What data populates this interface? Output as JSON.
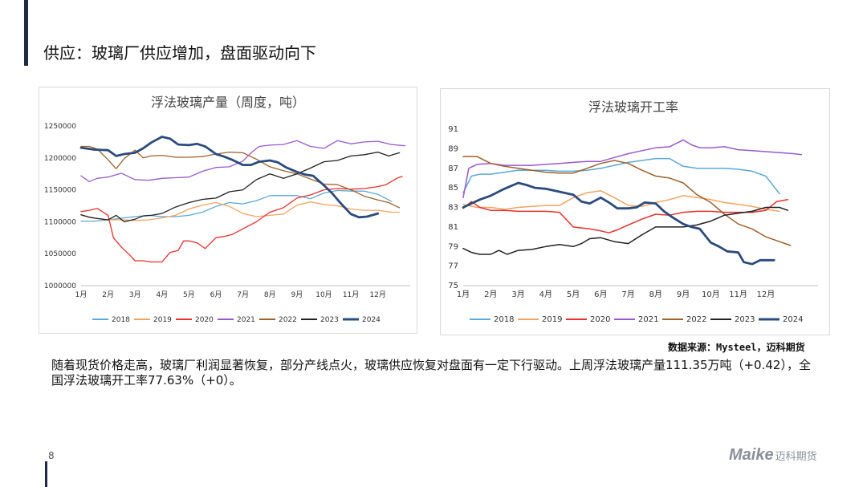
{
  "slide": {
    "title": "供应：玻璃厂供应增加，盘面驱动向下",
    "page_number": "8",
    "source": "数据来源：Mysteel，迈科期货",
    "description": "随着现货价格走高，玻璃厂利润显著恢复，部分产线点火，玻璃供应恢复对盘面有一定下行驱动。上周浮法玻璃产量111.35万吨（+0.42），全国浮法玻璃开工率77.63%（+0）。",
    "logo_brand": "Maike",
    "logo_text": "迈科期货",
    "colors": {
      "accent": "#1f2a44",
      "logo": "#8a8f99"
    }
  },
  "chart_data": [
    {
      "type": "line",
      "title": "浮法玻璃产量（周度，吨）",
      "xlabel": "",
      "ylabel": "",
      "ylim": [
        1000000,
        1250000
      ],
      "yticks": [
        1000000,
        1050000,
        1100000,
        1150000,
        1200000,
        1250000
      ],
      "xticks": [
        "1月",
        "2月",
        "3月",
        "4月",
        "5月",
        "6月",
        "7月",
        "8月",
        "9月",
        "10月",
        "11月",
        "12月"
      ],
      "xrange": [
        1,
        13.2
      ],
      "legend": "bottom",
      "series": [
        {
          "name": "2018",
          "color": "#5aa9d6",
          "width": 1.3,
          "x": [
            1,
            1.5,
            2,
            3,
            3.5,
            4,
            4.5,
            5,
            5.5,
            6,
            6.5,
            7,
            7.5,
            8,
            8.5,
            9,
            9.5,
            10,
            10.5,
            11,
            11.5,
            12,
            12.5
          ],
          "y": [
            1101000,
            1101000,
            1103000,
            1108000,
            1110000,
            1108000,
            1108000,
            1110000,
            1115000,
            1124000,
            1130000,
            1128000,
            1133000,
            1141000,
            1141000,
            1141000,
            1136000,
            1145000,
            1149000,
            1148000,
            1148000,
            1143000,
            1132000
          ]
        },
        {
          "name": "2019",
          "color": "#f4a460",
          "width": 1.3,
          "x": [
            1,
            1.5,
            2,
            2.5,
            3,
            3.5,
            4,
            4.5,
            5,
            5.5,
            6,
            6.5,
            7,
            7.5,
            8,
            8.5,
            9,
            9.5,
            10,
            10.5,
            11,
            11.5,
            12,
            12.5,
            12.8
          ],
          "y": [
            1110000,
            1106000,
            1103000,
            1103000,
            1102000,
            1103000,
            1106000,
            1110000,
            1120000,
            1126000,
            1130000,
            1124000,
            1113000,
            1108000,
            1110000,
            1112000,
            1126000,
            1131000,
            1127000,
            1125000,
            1120000,
            1118000,
            1118000,
            1115000,
            1115000
          ]
        },
        {
          "name": "2020",
          "color": "#e8302c",
          "width": 1.3,
          "x": [
            1,
            1.3,
            1.6,
            2,
            2.2,
            2.5,
            2.8,
            3,
            3.3,
            3.6,
            4,
            4.3,
            4.6,
            4.8,
            5,
            5.3,
            5.6,
            6,
            6.3,
            6.6,
            7,
            7.5,
            8,
            8.5,
            9,
            9.5,
            10,
            10.5,
            11,
            11.5,
            12,
            12.3,
            12.7,
            12.9
          ],
          "y": [
            1116000,
            1118000,
            1121000,
            1110000,
            1075000,
            1060000,
            1048000,
            1039000,
            1039000,
            1037000,
            1037000,
            1052000,
            1055000,
            1070000,
            1070000,
            1067000,
            1058000,
            1075000,
            1077000,
            1080000,
            1089000,
            1100000,
            1115000,
            1122000,
            1137000,
            1142000,
            1150000,
            1152000,
            1151000,
            1152000,
            1155000,
            1158000,
            1168000,
            1171000
          ]
        },
        {
          "name": "2021",
          "color": "#9b59d0",
          "width": 1.3,
          "x": [
            1,
            1.3,
            1.6,
            2,
            2.5,
            3,
            3.5,
            4,
            4.5,
            5,
            5.5,
            6,
            6.5,
            7,
            7.3,
            7.6,
            8,
            8.5,
            9,
            9.5,
            10,
            10.5,
            11,
            11.5,
            12,
            12.5,
            13
          ],
          "y": [
            1172000,
            1163000,
            1168000,
            1170000,
            1176000,
            1166000,
            1165000,
            1168000,
            1169000,
            1170000,
            1179000,
            1185000,
            1186000,
            1195000,
            1208000,
            1218000,
            1220000,
            1221000,
            1227000,
            1218000,
            1215000,
            1227000,
            1222000,
            1225000,
            1226000,
            1221000,
            1219000
          ]
        },
        {
          "name": "2022",
          "color": "#a0612b",
          "width": 1.3,
          "x": [
            1,
            1.3,
            1.6,
            2,
            2.3,
            2.6,
            3,
            3.3,
            3.6,
            4,
            4.5,
            5,
            5.5,
            6,
            6.5,
            7,
            7.5,
            8,
            8.5,
            9,
            9.5,
            10,
            10.5,
            11,
            11.5,
            12,
            12.4,
            12.8
          ],
          "y": [
            1218000,
            1218000,
            1214000,
            1197000,
            1183000,
            1199000,
            1212000,
            1200000,
            1203000,
            1204000,
            1201000,
            1201000,
            1202000,
            1206000,
            1209000,
            1208000,
            1198000,
            1186000,
            1180000,
            1175000,
            1167000,
            1159000,
            1158000,
            1150000,
            1140000,
            1134000,
            1130000,
            1122000
          ]
        },
        {
          "name": "2023",
          "color": "#222222",
          "width": 1.3,
          "x": [
            1,
            1.3,
            1.6,
            2,
            2.3,
            2.6,
            3,
            3.3,
            3.6,
            4,
            4.5,
            5,
            5.5,
            6,
            6.5,
            7,
            7.5,
            8,
            8.5,
            9,
            9.5,
            10,
            10.5,
            11,
            11.5,
            12,
            12.4,
            12.8
          ],
          "y": [
            1111000,
            1107000,
            1105000,
            1103000,
            1110000,
            1100000,
            1104000,
            1109000,
            1110000,
            1113000,
            1123000,
            1130000,
            1135000,
            1137000,
            1147000,
            1150000,
            1166000,
            1175000,
            1168000,
            1175000,
            1184000,
            1194000,
            1196000,
            1203000,
            1205000,
            1209000,
            1203000,
            1208000
          ]
        },
        {
          "name": "2024",
          "color": "#2b4b7e",
          "width": 2.8,
          "x": [
            1,
            1.5,
            2,
            2.3,
            2.6,
            3,
            3.3,
            3.6,
            4,
            4.3,
            4.6,
            5,
            5.3,
            5.6,
            6,
            6.3,
            6.6,
            7,
            7.3,
            7.6,
            8,
            8.3,
            8.6,
            9,
            9.3,
            9.6,
            10,
            10.3,
            10.6,
            11,
            11.3,
            11.6,
            12
          ],
          "y": [
            1216000,
            1213000,
            1212000,
            1203000,
            1206000,
            1208000,
            1215000,
            1224000,
            1233000,
            1230000,
            1221000,
            1220000,
            1222000,
            1218000,
            1206000,
            1202000,
            1197000,
            1189000,
            1189000,
            1194000,
            1196000,
            1193000,
            1185000,
            1178000,
            1174000,
            1172000,
            1157000,
            1145000,
            1130000,
            1112000,
            1107000,
            1108000,
            1113000
          ]
        }
      ]
    },
    {
      "type": "line",
      "title": "浮法玻璃开工率",
      "xlabel": "",
      "ylabel": "",
      "ylim": [
        75,
        91
      ],
      "yticks": [
        75,
        77,
        79,
        81,
        83,
        85,
        87,
        89,
        91
      ],
      "xticks": [
        "1月",
        "2月",
        "3月",
        "4月",
        "5月",
        "6月",
        "7月",
        "8月",
        "9月",
        "10月",
        "11月",
        "12月"
      ],
      "xrange": [
        1,
        13.9
      ],
      "legend": "bottom",
      "series": [
        {
          "name": "2018",
          "color": "#5aa9d6",
          "width": 1.5,
          "x": [
            1,
            1.3,
            1.6,
            2,
            2.5,
            3,
            3.5,
            4,
            4.5,
            5,
            5.5,
            6,
            6.5,
            7,
            7.5,
            8,
            8.5,
            9,
            9.5,
            10,
            10.5,
            11,
            11.5,
            12,
            12.5
          ],
          "y": [
            84.5,
            86.2,
            86.4,
            86.4,
            86.6,
            86.8,
            86.8,
            86.8,
            86.7,
            86.7,
            86.8,
            87.0,
            87.3,
            87.6,
            87.8,
            88.0,
            88.0,
            87.2,
            87.0,
            87.0,
            87.0,
            86.9,
            86.7,
            86.2,
            84.4
          ]
        },
        {
          "name": "2019",
          "color": "#f4a460",
          "width": 1.5,
          "x": [
            1,
            1.5,
            2,
            2.5,
            3,
            3.5,
            4,
            4.5,
            5,
            5.5,
            6,
            6.5,
            7,
            7.5,
            8,
            8.5,
            9,
            9.5,
            10,
            10.5,
            11,
            11.5,
            12,
            12.5
          ],
          "y": [
            83.3,
            83.0,
            83.0,
            82.8,
            83.0,
            83.1,
            83.2,
            83.2,
            84.0,
            84.5,
            84.7,
            84.0,
            83.2,
            83.1,
            83.5,
            83.8,
            84.2,
            84.0,
            83.8,
            83.5,
            83.3,
            83.1,
            82.8,
            82.6
          ]
        },
        {
          "name": "2020",
          "color": "#e8302c",
          "width": 1.5,
          "x": [
            1,
            1.3,
            1.6,
            2,
            2.5,
            3,
            3.5,
            4,
            4.5,
            5,
            5.3,
            5.6,
            6,
            6.3,
            6.6,
            7,
            7.5,
            8,
            8.5,
            9,
            9.5,
            10,
            10.5,
            11,
            11.5,
            12,
            12.4,
            12.8
          ],
          "y": [
            82.9,
            83.6,
            83.0,
            82.7,
            82.7,
            82.6,
            82.6,
            82.6,
            82.5,
            81.0,
            80.9,
            80.8,
            80.6,
            80.4,
            80.7,
            81.2,
            81.8,
            82.3,
            82.2,
            82.5,
            82.6,
            82.6,
            82.5,
            82.5,
            82.5,
            82.7,
            83.6,
            83.8
          ]
        },
        {
          "name": "2021",
          "color": "#9b59d0",
          "width": 1.5,
          "x": [
            1,
            1.2,
            1.5,
            2,
            2.5,
            3,
            3.5,
            4,
            4.5,
            5,
            5.5,
            6,
            6.5,
            7,
            7.5,
            8,
            8.5,
            9,
            9.3,
            9.6,
            10,
            10.5,
            11,
            11.5,
            12,
            12.5,
            13,
            13.3
          ],
          "y": [
            84.0,
            87.0,
            87.4,
            87.5,
            87.3,
            87.3,
            87.3,
            87.4,
            87.5,
            87.6,
            87.7,
            87.7,
            88.1,
            88.5,
            88.8,
            89.1,
            89.2,
            89.9,
            89.4,
            89.1,
            89.1,
            89.2,
            88.9,
            88.8,
            88.7,
            88.6,
            88.5,
            88.4
          ]
        },
        {
          "name": "2022",
          "color": "#a0612b",
          "width": 1.5,
          "x": [
            1,
            1.5,
            2,
            2.5,
            3,
            3.5,
            4,
            4.5,
            5,
            5.5,
            6,
            6.5,
            7,
            7.5,
            8,
            8.5,
            9,
            9.5,
            10,
            10.5,
            11,
            11.5,
            12,
            12.5,
            12.9
          ],
          "y": [
            88.2,
            88.2,
            87.5,
            87.2,
            87.0,
            86.8,
            86.6,
            86.5,
            86.5,
            87.0,
            87.5,
            87.8,
            87.5,
            86.8,
            86.2,
            86.0,
            85.5,
            84.3,
            83.5,
            82.3,
            81.3,
            80.8,
            80.0,
            79.5,
            79.1
          ]
        },
        {
          "name": "2023",
          "color": "#222222",
          "width": 1.5,
          "x": [
            1,
            1.3,
            1.6,
            2,
            2.3,
            2.6,
            3,
            3.5,
            4,
            4.5,
            5,
            5.3,
            5.6,
            6,
            6.5,
            7,
            7.5,
            8,
            8.5,
            9,
            9.5,
            10,
            10.5,
            11,
            11.5,
            12,
            12.5,
            12.8
          ],
          "y": [
            78.8,
            78.4,
            78.2,
            78.2,
            78.6,
            78.2,
            78.6,
            78.7,
            79.0,
            79.2,
            79.0,
            79.3,
            79.8,
            79.9,
            79.5,
            79.3,
            80.2,
            81.0,
            81.0,
            81.0,
            81.2,
            81.6,
            82.2,
            82.4,
            82.6,
            83.0,
            83.0,
            82.7
          ]
        },
        {
          "name": "2024",
          "color": "#2b4b7e",
          "width": 2.8,
          "x": [
            1,
            1.3,
            1.6,
            2,
            2.5,
            3,
            3.3,
            3.6,
            4,
            4.5,
            5,
            5.3,
            5.6,
            6,
            6.3,
            6.6,
            7,
            7.3,
            7.6,
            8,
            8.3,
            8.6,
            9,
            9.3,
            9.6,
            10,
            10.3,
            10.6,
            11,
            11.2,
            11.5,
            11.8,
            12.3
          ],
          "y": [
            83.0,
            83.4,
            83.8,
            84.2,
            84.9,
            85.5,
            85.3,
            85.0,
            84.9,
            84.6,
            84.3,
            83.6,
            83.4,
            84.0,
            83.5,
            82.9,
            82.9,
            83.0,
            83.5,
            83.4,
            82.6,
            82.0,
            81.3,
            81.0,
            80.8,
            79.4,
            79.0,
            78.5,
            78.4,
            77.4,
            77.2,
            77.6,
            77.6
          ]
        }
      ]
    }
  ]
}
